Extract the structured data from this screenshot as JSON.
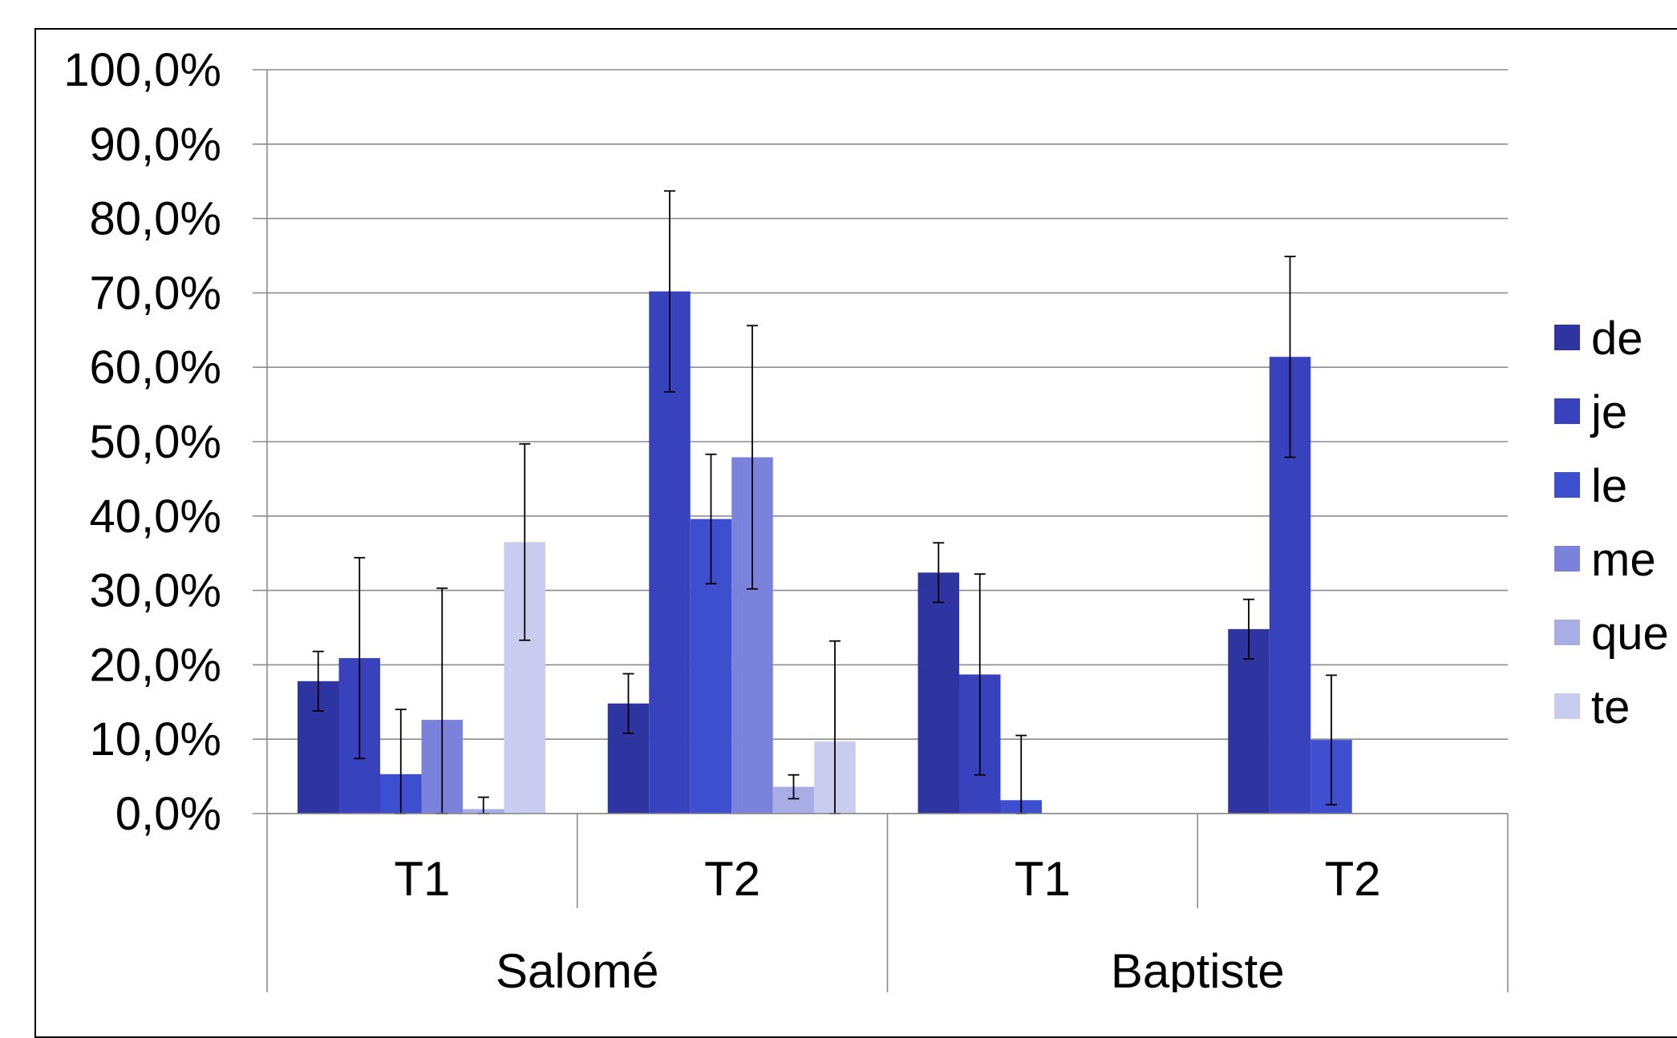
{
  "chart_data": {
    "type": "bar",
    "title": "",
    "xlabel": "",
    "ylabel": "",
    "ylim": [
      0,
      100
    ],
    "y_ticks": [
      "0,0%",
      "10,0%",
      "20,0%",
      "30,0%",
      "40,0%",
      "50,0%",
      "60,0%",
      "70,0%",
      "80,0%",
      "90,0%",
      "100,0%"
    ],
    "groups": [
      {
        "name": "Salomé",
        "categories": [
          "T1",
          "T2"
        ]
      },
      {
        "name": "Baptiste",
        "categories": [
          "T1",
          "T2"
        ]
      }
    ],
    "categories": [
      "T1",
      "T2",
      "T1",
      "T2"
    ],
    "series": [
      {
        "name": "de",
        "color": "#2e35a0",
        "values": [
          17.8,
          14.8,
          32.4,
          24.8
        ],
        "errors": [
          4.0,
          4.0,
          4.0,
          4.0
        ]
      },
      {
        "name": "je",
        "color": "#3842bd",
        "values": [
          20.9,
          70.2,
          18.7,
          61.4
        ],
        "errors": [
          13.5,
          13.5,
          13.5,
          13.5
        ]
      },
      {
        "name": "le",
        "color": "#3d4fcf",
        "values": [
          5.3,
          39.6,
          1.8,
          9.9
        ],
        "errors": [
          8.7,
          8.7,
          8.7,
          8.7
        ]
      },
      {
        "name": "me",
        "color": "#7a82dc",
        "values": [
          12.6,
          47.9,
          null,
          null
        ],
        "errors": [
          17.7,
          17.7,
          null,
          null
        ]
      },
      {
        "name": "que",
        "color": "#a8ade6",
        "values": [
          0.6,
          3.6,
          null,
          null
        ],
        "errors": [
          1.6,
          1.6,
          null,
          null
        ]
      },
      {
        "name": "te",
        "color": "#c9ccef",
        "values": [
          36.5,
          9.7,
          null,
          null
        ],
        "errors": [
          13.2,
          13.5,
          null,
          null
        ]
      }
    ],
    "grid": true,
    "legend_position": "right",
    "error_bars": true
  }
}
